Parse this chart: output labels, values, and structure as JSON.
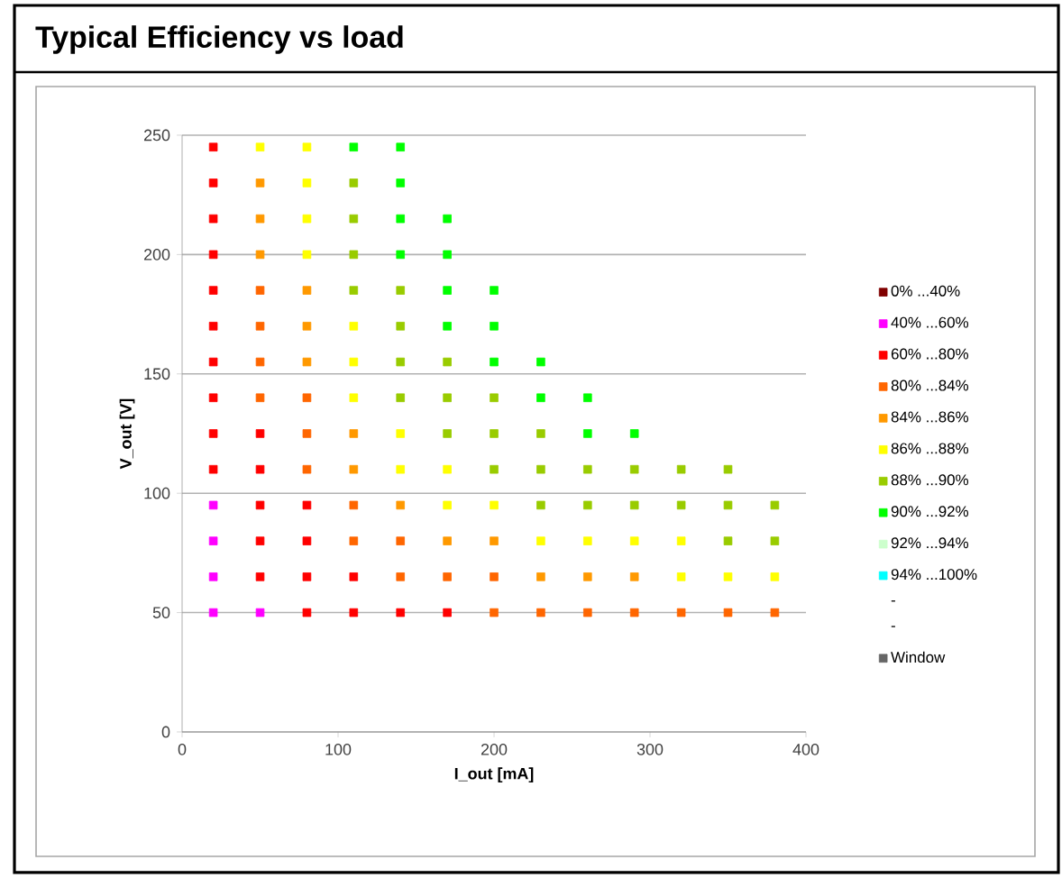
{
  "chart_data": {
    "type": "scatter",
    "title": "Typical Efficiency vs load",
    "xlabel": "I_out [mA]",
    "ylabel": "V_out [V]",
    "xlim": [
      0,
      400
    ],
    "ylim": [
      0,
      250
    ],
    "xticks": [
      0,
      100,
      200,
      300,
      400
    ],
    "yticks": [
      0,
      50,
      100,
      150,
      200,
      250
    ],
    "grid": "y",
    "legend": "right",
    "marker": "square",
    "series": [
      {
        "name": "0% ...40%",
        "color": "#800000"
      },
      {
        "name": "40% ...60%",
        "color": "#ff00ff",
        "x": [
          20,
          20,
          20,
          20,
          50
        ],
        "values": [
          95,
          80,
          65,
          50,
          50
        ]
      },
      {
        "name": "60% ...80%",
        "color": "#ff0000",
        "x": [
          20,
          20,
          20,
          20,
          20,
          20,
          20,
          20,
          20,
          50,
          20,
          50,
          50,
          80,
          50,
          80,
          50,
          80,
          110,
          80,
          110,
          140,
          170
        ],
        "values": [
          245,
          230,
          215,
          200,
          185,
          170,
          155,
          140,
          125,
          125,
          110,
          110,
          95,
          95,
          80,
          80,
          65,
          65,
          65,
          50,
          50,
          50,
          50
        ]
      },
      {
        "name": "80% ...84%",
        "color": "#ff6600",
        "x": [
          50,
          50,
          50,
          50,
          80,
          80,
          80,
          110,
          110,
          140,
          140,
          170,
          200,
          200,
          230,
          260,
          290,
          320,
          350,
          380
        ],
        "values": [
          185,
          170,
          155,
          140,
          140,
          125,
          110,
          95,
          80,
          80,
          65,
          65,
          65,
          50,
          50,
          50,
          50,
          50,
          50,
          50
        ]
      },
      {
        "name": "84% ...86%",
        "color": "#ff9900",
        "x": [
          50,
          50,
          50,
          80,
          80,
          80,
          110,
          110,
          140,
          170,
          200,
          230,
          260,
          290
        ],
        "values": [
          230,
          215,
          200,
          185,
          170,
          155,
          125,
          110,
          95,
          80,
          80,
          65,
          65,
          65
        ]
      },
      {
        "name": "86% ...88%",
        "color": "#ffff00",
        "x": [
          50,
          80,
          80,
          80,
          80,
          110,
          110,
          110,
          140,
          140,
          170,
          170,
          200,
          230,
          260,
          290,
          320,
          320,
          350,
          380
        ],
        "values": [
          245,
          245,
          230,
          215,
          200,
          170,
          155,
          140,
          125,
          110,
          110,
          95,
          95,
          80,
          80,
          80,
          80,
          65,
          65,
          65
        ]
      },
      {
        "name": "88% ...90%",
        "color": "#99cc00",
        "x": [
          110,
          110,
          110,
          110,
          140,
          140,
          140,
          170,
          140,
          170,
          200,
          170,
          200,
          230,
          200,
          230,
          260,
          290,
          320,
          350,
          230,
          260,
          290,
          320,
          350,
          380,
          350,
          380
        ],
        "values": [
          230,
          215,
          200,
          185,
          185,
          170,
          155,
          155,
          140,
          140,
          140,
          125,
          125,
          125,
          110,
          110,
          110,
          110,
          110,
          110,
          95,
          95,
          95,
          95,
          95,
          95,
          80,
          80
        ]
      },
      {
        "name": "90% ...92%",
        "color": "#00ff00",
        "x": [
          110,
          140,
          140,
          140,
          170,
          140,
          170,
          170,
          200,
          170,
          200,
          200,
          230,
          230,
          260,
          260,
          290
        ],
        "values": [
          245,
          245,
          230,
          215,
          215,
          200,
          200,
          185,
          185,
          170,
          170,
          155,
          155,
          140,
          140,
          125,
          125
        ]
      },
      {
        "name": "92% ...94%",
        "color": "#ccffcc"
      },
      {
        "name": "94% ...100%",
        "color": "#00ffff"
      },
      {
        "name": "-"
      },
      {
        "name": "-"
      },
      {
        "name": "Window",
        "color": "#666666"
      }
    ]
  }
}
